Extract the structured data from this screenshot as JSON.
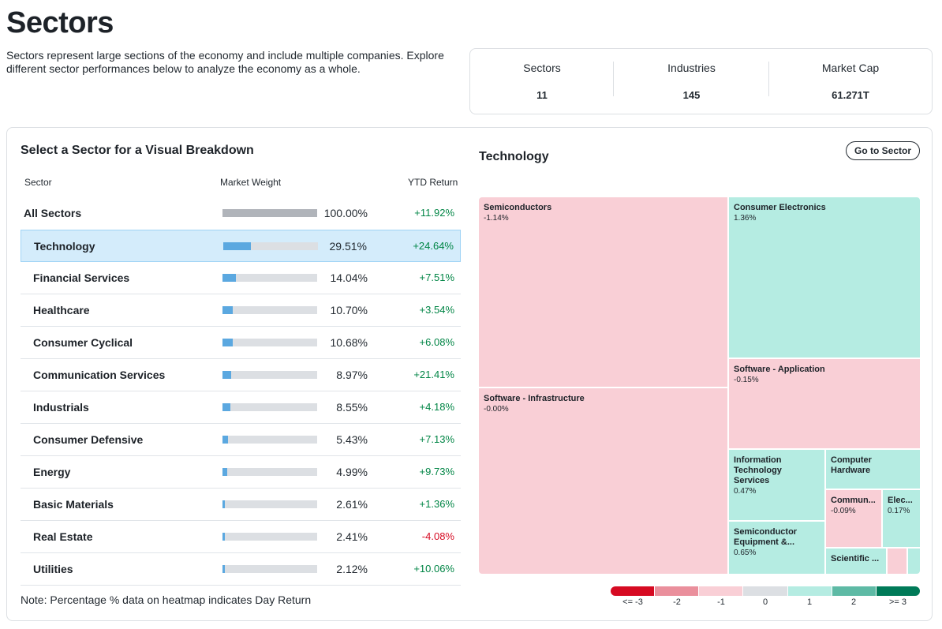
{
  "page": {
    "title": "Sectors",
    "description": "Sectors represent large sections of the economy and include multiple companies. Explore different sector performances below to analyze the economy as a whole."
  },
  "stats": [
    {
      "label": "Sectors",
      "value": "11"
    },
    {
      "label": "Industries",
      "value": "145"
    },
    {
      "label": "Market Cap",
      "value": "61.271T"
    }
  ],
  "breakdown": {
    "title": "Select a Sector for a Visual Breakdown",
    "columns": {
      "sector": "Sector",
      "weight": "Market Weight",
      "ytd": "YTD Return"
    },
    "rows": [
      {
        "name": "All Sectors",
        "weight": "100.00%",
        "weight_pct": 100,
        "ytd": "+11.92%",
        "trend": "pos",
        "selected": false
      },
      {
        "name": "Technology",
        "weight": "29.51%",
        "weight_pct": 29.51,
        "ytd": "+24.64%",
        "trend": "pos",
        "selected": true
      },
      {
        "name": "Financial Services",
        "weight": "14.04%",
        "weight_pct": 14.04,
        "ytd": "+7.51%",
        "trend": "pos",
        "selected": false
      },
      {
        "name": "Healthcare",
        "weight": "10.70%",
        "weight_pct": 10.7,
        "ytd": "+3.54%",
        "trend": "pos",
        "selected": false
      },
      {
        "name": "Consumer Cyclical",
        "weight": "10.68%",
        "weight_pct": 10.68,
        "ytd": "+6.08%",
        "trend": "pos",
        "selected": false
      },
      {
        "name": "Communication Services",
        "weight": "8.97%",
        "weight_pct": 8.97,
        "ytd": "+21.41%",
        "trend": "pos",
        "selected": false
      },
      {
        "name": "Industrials",
        "weight": "8.55%",
        "weight_pct": 8.55,
        "ytd": "+4.18%",
        "trend": "pos",
        "selected": false
      },
      {
        "name": "Consumer Defensive",
        "weight": "5.43%",
        "weight_pct": 5.43,
        "ytd": "+7.13%",
        "trend": "pos",
        "selected": false
      },
      {
        "name": "Energy",
        "weight": "4.99%",
        "weight_pct": 4.99,
        "ytd": "+9.73%",
        "trend": "pos",
        "selected": false
      },
      {
        "name": "Basic Materials",
        "weight": "2.61%",
        "weight_pct": 2.61,
        "ytd": "+1.36%",
        "trend": "pos",
        "selected": false
      },
      {
        "name": "Real Estate",
        "weight": "2.41%",
        "weight_pct": 2.41,
        "ytd": "-4.08%",
        "trend": "neg",
        "selected": false
      },
      {
        "name": "Utilities",
        "weight": "2.12%",
        "weight_pct": 2.12,
        "ytd": "+10.06%",
        "trend": "pos",
        "selected": false
      }
    ],
    "note": "Note: Percentage % data on heatmap indicates Day Return"
  },
  "heatmap": {
    "title": "Technology",
    "button_label": "Go to Sector",
    "tiles": [
      {
        "name": "Semiconductors",
        "value": "-1.14%",
        "trend": "neg"
      },
      {
        "name": "Software - Infrastructure",
        "value": "-0.00%",
        "trend": "neg"
      },
      {
        "name": "Consumer Electronics",
        "value": "1.36%",
        "trend": "pos"
      },
      {
        "name": "Software - Application",
        "value": "-0.15%",
        "trend": "neg"
      },
      {
        "name": "Information\nTechnology Services",
        "value": "0.47%",
        "trend": "pos"
      },
      {
        "name": "Semiconductor\nEquipment &...",
        "value": "0.65%",
        "trend": "pos"
      },
      {
        "name": "Computer\nHardware",
        "value": "",
        "trend": "pos"
      },
      {
        "name": "Commun...",
        "value": "-0.09%",
        "trend": "neg"
      },
      {
        "name": "Elec...",
        "value": "0.17%",
        "trend": "pos"
      },
      {
        "name": "Scientific ...",
        "value": "",
        "trend": "pos"
      },
      {
        "name": "",
        "value": "",
        "trend": "neg"
      },
      {
        "name": "",
        "value": "",
        "trend": "pos"
      }
    ],
    "legend": {
      "labels": [
        "<= -3",
        "-2",
        "-1",
        "0",
        "1",
        "2",
        ">= 3"
      ],
      "colors": [
        "#d60a22",
        "#ea8f9c",
        "#f9cfd6",
        "#dcdfe3",
        "#b5ece2",
        "#5ebaa5",
        "#007a58"
      ]
    }
  }
}
